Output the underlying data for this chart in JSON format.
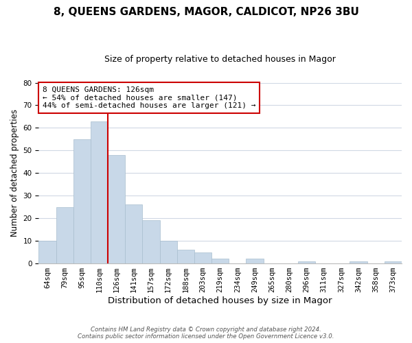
{
  "title": "8, QUEENS GARDENS, MAGOR, CALDICOT, NP26 3BU",
  "subtitle": "Size of property relative to detached houses in Magor",
  "xlabel": "Distribution of detached houses by size in Magor",
  "ylabel": "Number of detached properties",
  "bar_labels": [
    "64sqm",
    "79sqm",
    "95sqm",
    "110sqm",
    "126sqm",
    "141sqm",
    "157sqm",
    "172sqm",
    "188sqm",
    "203sqm",
    "219sqm",
    "234sqm",
    "249sqm",
    "265sqm",
    "280sqm",
    "296sqm",
    "311sqm",
    "327sqm",
    "342sqm",
    "358sqm",
    "373sqm"
  ],
  "bar_values": [
    10,
    25,
    55,
    63,
    48,
    26,
    19,
    10,
    6,
    5,
    2,
    0,
    2,
    0,
    0,
    1,
    0,
    0,
    1,
    0,
    1
  ],
  "bar_color": "#c8d8e8",
  "bar_edge_color": "#a8bece",
  "vline_index": 4,
  "vline_color": "#cc0000",
  "ylim": [
    0,
    80
  ],
  "yticks": [
    0,
    10,
    20,
    30,
    40,
    50,
    60,
    70,
    80
  ],
  "annotation_text": "8 QUEENS GARDENS: 126sqm\n← 54% of detached houses are smaller (147)\n44% of semi-detached houses are larger (121) →",
  "annotation_box_color": "#ffffff",
  "annotation_box_edge": "#cc0000",
  "footer_line1": "Contains HM Land Registry data © Crown copyright and database right 2024.",
  "footer_line2": "Contains public sector information licensed under the Open Government Licence v3.0.",
  "background_color": "#ffffff",
  "grid_color": "#d0d8e4",
  "title_fontsize": 11,
  "subtitle_fontsize": 9,
  "tick_fontsize": 7.5,
  "ylabel_fontsize": 8.5,
  "xlabel_fontsize": 9.5,
  "annotation_fontsize": 8
}
